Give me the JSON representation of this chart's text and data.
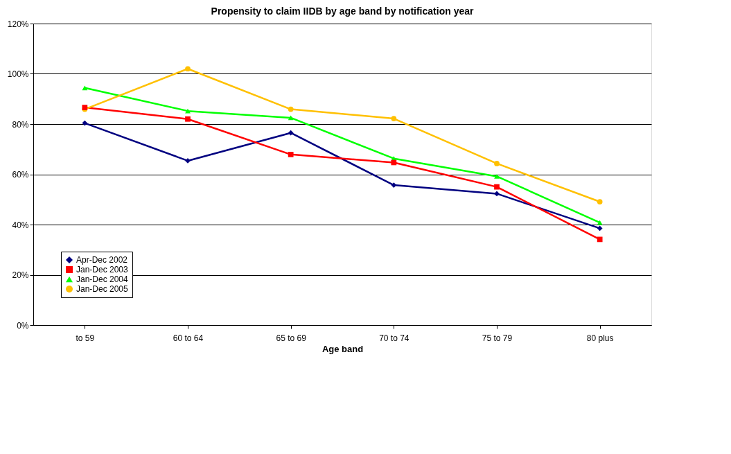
{
  "chart_data": {
    "type": "line",
    "title": "Propensity to claim IIDB by age band by notification year",
    "xlabel": "Age band",
    "categories": [
      "to 59",
      "60 to 64",
      "65 to 69",
      "70 to 74",
      "75 to 79",
      "80 plus"
    ],
    "series": [
      {
        "name": "Apr-Dec 2002",
        "color": "#000080",
        "marker": "diamond",
        "values": [
          80.4,
          65.4,
          76.5,
          55.7,
          52.3,
          38.5
        ]
      },
      {
        "name": "Jan-Dec 2003",
        "color": "#ff0000",
        "marker": "square",
        "values": [
          86.6,
          82.0,
          67.9,
          64.7,
          55.0,
          34.1
        ]
      },
      {
        "name": "Jan-Dec 2004",
        "color": "#00ff00",
        "marker": "triangle",
        "values": [
          94.4,
          85.2,
          82.5,
          66.3,
          59.2,
          40.8
        ]
      },
      {
        "name": "Jan-Dec 2005",
        "color": "#ffc000",
        "marker": "circle",
        "values": [
          85.9,
          102.0,
          85.9,
          82.2,
          64.3,
          49.1
        ]
      }
    ],
    "ylim": [
      0,
      120
    ],
    "yticks": [
      {
        "value": 0,
        "label": "0%"
      },
      {
        "value": 20,
        "label": "20%"
      },
      {
        "value": 40,
        "label": "40%"
      },
      {
        "value": 60,
        "label": "60%"
      },
      {
        "value": 80,
        "label": "80%"
      },
      {
        "value": 100,
        "label": "100%"
      },
      {
        "value": 120,
        "label": "120%"
      }
    ],
    "grid": "y",
    "legend": "bottom left",
    "line_style": "solid"
  }
}
